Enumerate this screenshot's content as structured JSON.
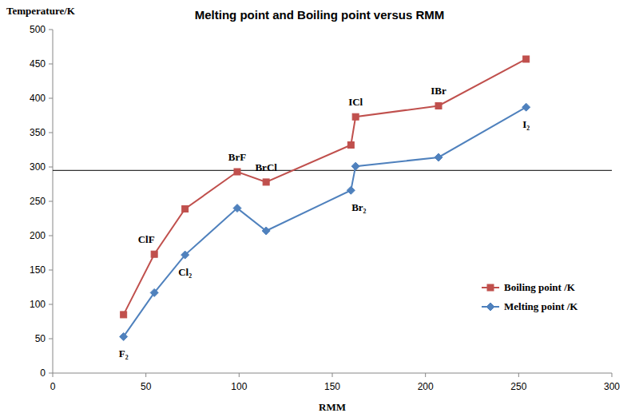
{
  "chart_data": {
    "type": "line",
    "title": "Melting point and Boiling point versus RMM",
    "x_label": "RMM",
    "y_label": "Temperature/K",
    "x": [
      38,
      54.5,
      71,
      99,
      114.5,
      160,
      162.5,
      207,
      254
    ],
    "series": [
      {
        "name": "Boiling point /K",
        "color": "#c0504d",
        "marker": "square",
        "values": [
          85,
          173,
          239,
          293,
          278,
          332,
          373,
          389,
          457
        ],
        "labels": [
          null,
          "ClF",
          null,
          "BrF",
          "BrCl",
          null,
          "ICl",
          "IBr",
          null
        ]
      },
      {
        "name": "Melting point /K",
        "color": "#4f81bd",
        "marker": "diamond",
        "values": [
          53,
          117,
          172,
          240,
          207,
          266,
          301,
          314,
          387
        ],
        "labels": [
          "F₂",
          null,
          "Cl₂",
          null,
          null,
          "Br₂",
          null,
          null,
          "I₂"
        ]
      }
    ],
    "hline": 295,
    "xlim": [
      0,
      300
    ],
    "xticks": [
      0,
      50,
      100,
      150,
      200,
      250,
      300
    ],
    "ylim": [
      0,
      500
    ],
    "yticks": [
      0,
      50,
      100,
      150,
      200,
      250,
      300,
      350,
      400,
      450,
      500
    ],
    "grid": false,
    "legend": "right"
  }
}
